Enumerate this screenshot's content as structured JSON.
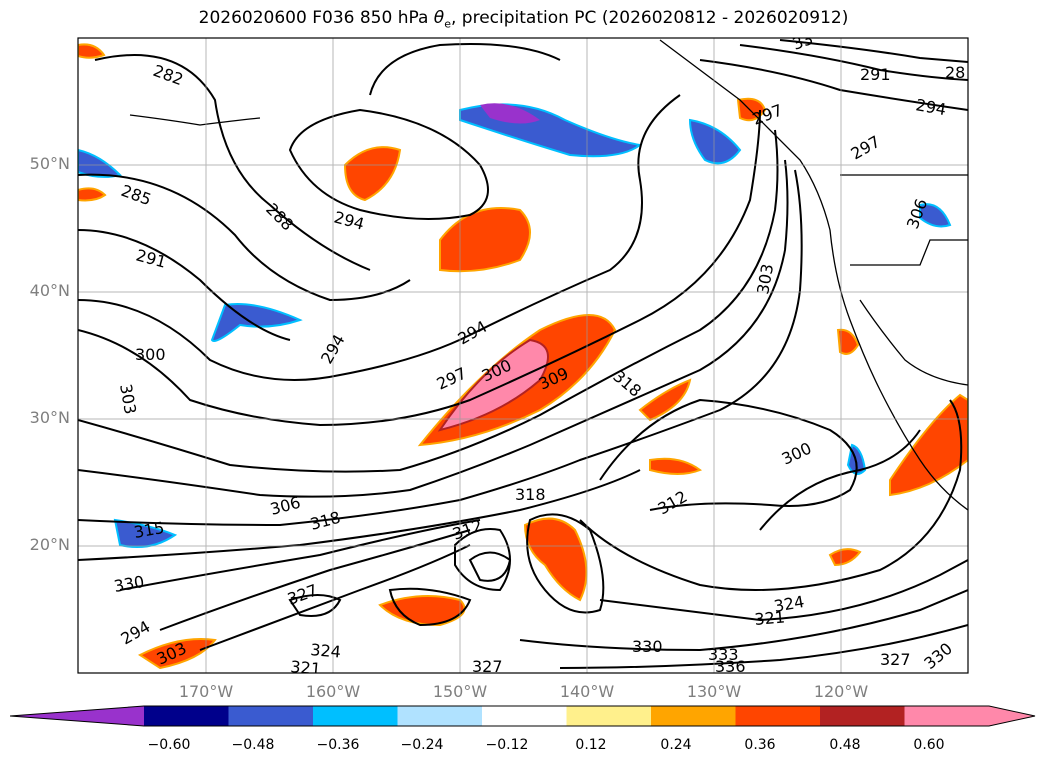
{
  "title": {
    "prefix": "2026020600 F036 850 hPa ",
    "symbol": "θ",
    "subscript": "e",
    "suffix": ", precipitation PC (2026020812 - 2026020912)"
  },
  "map": {
    "lat_labels": [
      "50°N",
      "40°N",
      "30°N",
      "20°N"
    ],
    "lon_labels": [
      "170°W",
      "160°W",
      "150°W",
      "140°W",
      "130°W",
      "120°W"
    ],
    "contour_labels": [
      "282",
      "285",
      "288",
      "291",
      "294",
      "294",
      "294",
      "294",
      "297",
      "300",
      "309",
      "318",
      "300",
      "303",
      "300",
      "306",
      "315",
      "318",
      "312",
      "318",
      "312",
      "327",
      "330",
      "321",
      "324",
      "327",
      "330",
      "333",
      "336",
      "321",
      "324",
      "327",
      "330",
      "306",
      "303",
      "297",
      "297",
      "294",
      "291",
      "28",
      "303",
      "33"
    ]
  },
  "colorbar": {
    "ticks": [
      "−0.60",
      "−0.48",
      "−0.36",
      "−0.24",
      "−0.12",
      "0.12",
      "0.24",
      "0.36",
      "0.48",
      "0.60"
    ],
    "colors": [
      "#9932cc",
      "#00008b",
      "#3a5bd0",
      "#00bfff",
      "#b0e2ff",
      "#ffffff",
      "#fff08c",
      "#ffa500",
      "#ff4500",
      "#b22222",
      "#ff88aa",
      "#ff88aa"
    ]
  }
}
